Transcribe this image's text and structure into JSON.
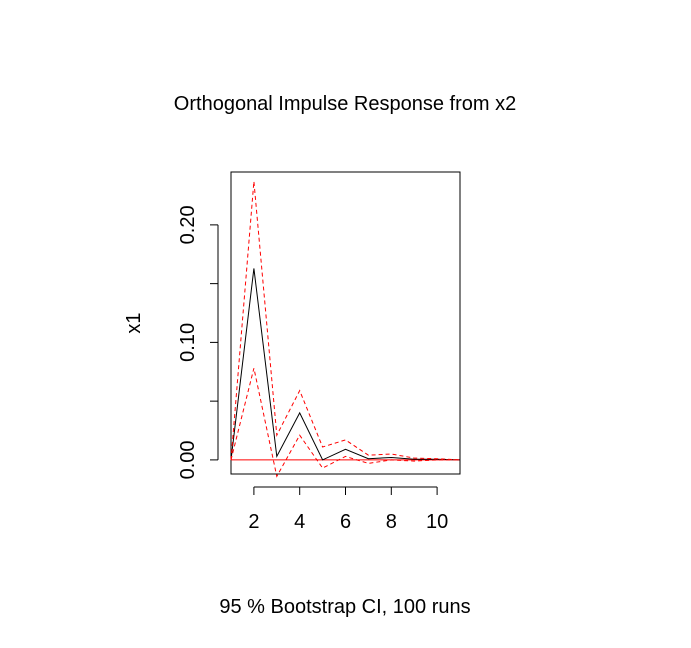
{
  "chart_data": {
    "type": "line",
    "title": "Orthogonal Impulse Response from x2",
    "ylabel": "x1",
    "xlabel": "",
    "footer": "95 % Bootstrap CI,  100 runs",
    "xlim": [
      1,
      11
    ],
    "ylim": [
      -0.012,
      0.245
    ],
    "xticks": [
      2,
      4,
      6,
      8,
      10
    ],
    "yticks": [
      0.0,
      0.1,
      0.2
    ],
    "ytick_labels": [
      "0.00",
      "0.10",
      "0.20"
    ],
    "x": [
      1,
      2,
      3,
      4,
      5,
      6,
      7,
      8,
      9,
      10,
      11
    ],
    "series": [
      {
        "role": "response",
        "color": "#000000",
        "style": "solid",
        "values": [
          0.0,
          0.163,
          0.003,
          0.04,
          0.0,
          0.009,
          0.001,
          0.002,
          0.0005,
          0.0005,
          0.0
        ]
      },
      {
        "role": "upper-ci",
        "color": "#ff0000",
        "style": "dashed",
        "values": [
          0.0,
          0.237,
          0.021,
          0.059,
          0.011,
          0.017,
          0.004,
          0.005,
          0.0015,
          0.001,
          0.0
        ]
      },
      {
        "role": "lower-ci",
        "color": "#ff0000",
        "style": "dashed",
        "values": [
          0.0,
          0.078,
          -0.014,
          0.021,
          -0.007,
          0.003,
          -0.003,
          0.0,
          -0.001,
          0.0,
          0.0
        ]
      }
    ],
    "reference_line": {
      "y": 0,
      "color": "#ff0000"
    },
    "grid": false,
    "legend": "none"
  }
}
